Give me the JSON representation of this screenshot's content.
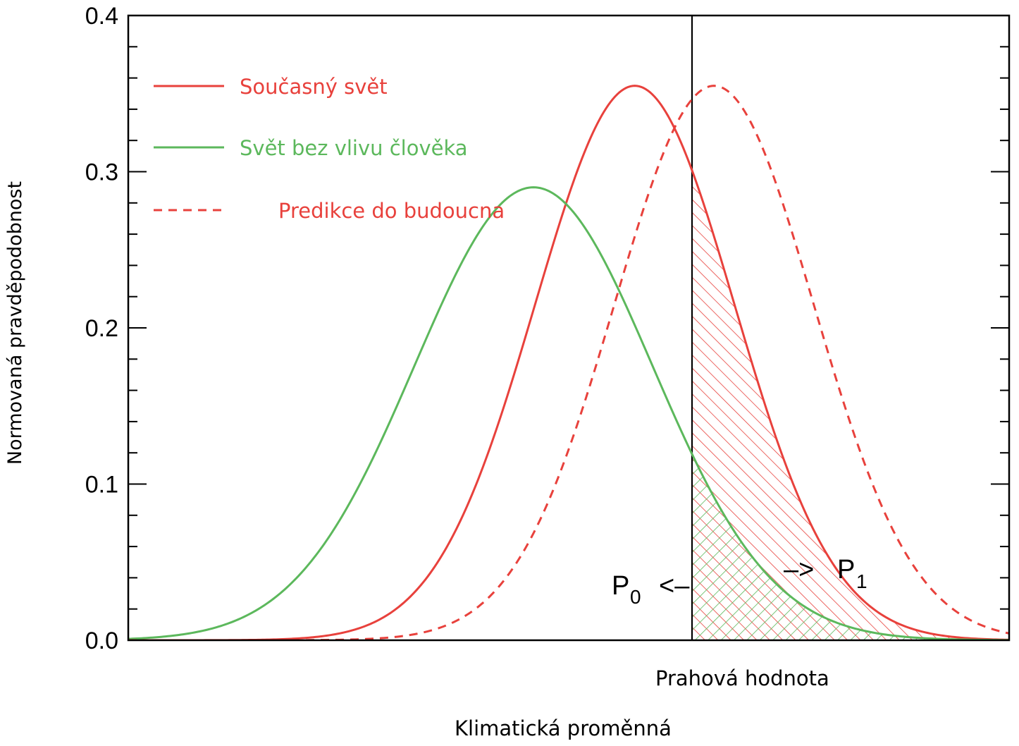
{
  "chart_data": {
    "type": "line",
    "title": "",
    "xlabel": "Klimatická proměnná",
    "ylabel": "Normovaná pravděpodobnost",
    "xlim": [
      0,
      100
    ],
    "ylim": [
      0,
      0.4
    ],
    "y_ticks": [
      "0.0",
      "0.1",
      "0.2",
      "0.3",
      "0.4"
    ],
    "threshold": {
      "x": 64,
      "label": "Prahová hodnota"
    },
    "series": [
      {
        "name": "Současný svět",
        "color": "#e8413c",
        "dash": "solid",
        "mean": 57.5,
        "sd": 11.3,
        "peak": 0.355
      },
      {
        "name": "Svět bez vlivu člověka",
        "color": "#5cb85c",
        "dash": "solid",
        "mean": 46,
        "sd": 13.5,
        "peak": 0.29
      },
      {
        "name": "Predikce do budoucna",
        "color": "#e8413c",
        "dash": "dashed",
        "mean": 66.5,
        "sd": 11.3,
        "peak": 0.355
      }
    ],
    "annotations": {
      "p0": {
        "main": "P",
        "sub": "0",
        "arrow": "<–"
      },
      "p1": {
        "main": "P",
        "sub": "1",
        "arrow": "–>"
      }
    },
    "legend_position": "top-left"
  }
}
